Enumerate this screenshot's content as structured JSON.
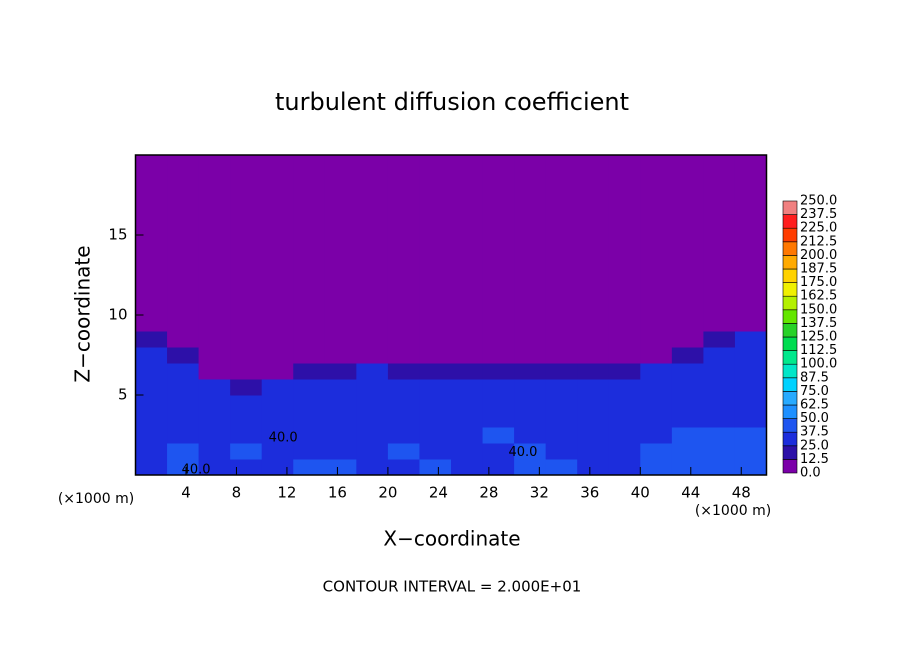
{
  "chart_data": {
    "type": "contour",
    "title": "turbulent diffusion coefficient",
    "xlabel": "X−coordinate",
    "ylabel": "Z−coordinate",
    "xunit": "(×1000 m)",
    "yunit": "(×1000 m)",
    "footer": "CONTOUR INTERVAL = 2.000E+01",
    "xlim": [
      0,
      50
    ],
    "ylim": [
      0,
      20
    ],
    "xticks": [
      4,
      8,
      12,
      16,
      20,
      24,
      28,
      32,
      36,
      40,
      44,
      48
    ],
    "yticks": [
      5,
      10,
      15
    ],
    "levels": [
      {
        "value": 0,
        "label": "0.0"
      },
      {
        "value": 12.5,
        "label": "12.5"
      },
      {
        "value": 25,
        "label": "25.0"
      },
      {
        "value": 37.5,
        "label": "37.5"
      },
      {
        "value": 50,
        "label": "50.0"
      },
      {
        "value": 62.5,
        "label": "62.5"
      },
      {
        "value": 75,
        "label": "75.0"
      },
      {
        "value": 87.5,
        "label": "87.5"
      },
      {
        "value": 100,
        "label": "100.0"
      },
      {
        "value": 112.5,
        "label": "112.5"
      },
      {
        "value": 125,
        "label": "125.0"
      },
      {
        "value": 137.5,
        "label": "137.5"
      },
      {
        "value": 150,
        "label": "150.0"
      },
      {
        "value": 162.5,
        "label": "162.5"
      },
      {
        "value": 175,
        "label": "175.0"
      },
      {
        "value": 187.5,
        "label": "187.5"
      },
      {
        "value": 200,
        "label": "200.0"
      },
      {
        "value": 212.5,
        "label": "212.5"
      },
      {
        "value": 225,
        "label": "225.0"
      },
      {
        "value": 237.5,
        "label": "237.5"
      },
      {
        "value": 250,
        "label": "250.0"
      }
    ],
    "colors": [
      "#7b00a8",
      "#2d10a8",
      "#1c2ddc",
      "#1e55f0",
      "#1e90ff",
      "#28aaff",
      "#00d2ff",
      "#00e6c8",
      "#00e88c",
      "#00dc50",
      "#28d228",
      "#64e600",
      "#b4f000",
      "#f0f000",
      "#ffd200",
      "#ffaa00",
      "#ff7800",
      "#ff3c00",
      "#ff1e1e",
      "#f08080"
    ],
    "field": {
      "x_edges": [
        0,
        2.5,
        5,
        7.5,
        10,
        12.5,
        15,
        17.5,
        20,
        22.5,
        25,
        27.5,
        30,
        32.5,
        35,
        37.5,
        40,
        42.5,
        45,
        47.5,
        50
      ],
      "z_edges": [
        0,
        1,
        2,
        3,
        4,
        5,
        6,
        7,
        8,
        9,
        10,
        20
      ],
      "values": [
        [
          37,
          40,
          35,
          30,
          35,
          40,
          38,
          32,
          35,
          40,
          36,
          33,
          38,
          42,
          35,
          30,
          38,
          45,
          40,
          42
        ],
        [
          35,
          38,
          30,
          40,
          36,
          32,
          30,
          35,
          38,
          34,
          30,
          36,
          40,
          35,
          32,
          35,
          40,
          42,
          45,
          40
        ],
        [
          32,
          35,
          28,
          30,
          34,
          30,
          36,
          33,
          30,
          28,
          35,
          38,
          32,
          30,
          34,
          32,
          30,
          38,
          40,
          38
        ],
        [
          30,
          32,
          35,
          30,
          28,
          30,
          32,
          35,
          33,
          30,
          32,
          34,
          36,
          30,
          32,
          35,
          34,
          36,
          35,
          36
        ],
        [
          30,
          28,
          30,
          32,
          30,
          33,
          35,
          32,
          36,
          34,
          30,
          32,
          35,
          33,
          30,
          36,
          32,
          34,
          33,
          35
        ],
        [
          28,
          30,
          25,
          20,
          28,
          32,
          30,
          34,
          30,
          32,
          28,
          30,
          32,
          30,
          30,
          32,
          30,
          32,
          30,
          33
        ],
        [
          28,
          25,
          10,
          2,
          8,
          15,
          20,
          25,
          22,
          20,
          18,
          24,
          20,
          22,
          20,
          15,
          28,
          30,
          28,
          30
        ],
        [
          25,
          18,
          2,
          0,
          0,
          0,
          3,
          8,
          5,
          4,
          2,
          3,
          4,
          2,
          0,
          0,
          5,
          20,
          25,
          28
        ],
        [
          22,
          8,
          0,
          0,
          0,
          0,
          0,
          0,
          0,
          0,
          0,
          0,
          0,
          0,
          0,
          0,
          0,
          3,
          18,
          25
        ],
        [
          12,
          2,
          0,
          0,
          0,
          0,
          0,
          0,
          0,
          0,
          0,
          0,
          0,
          0,
          0,
          0,
          0,
          0,
          5,
          8
        ],
        [
          0,
          0,
          0,
          0,
          0,
          0,
          0,
          0,
          0,
          0,
          0,
          0,
          0,
          0,
          0,
          0,
          0,
          0,
          0,
          0
        ]
      ]
    },
    "contour_labels": [
      {
        "text": "40.0",
        "x": 11.7,
        "z": 2.3
      },
      {
        "text": "40.0",
        "x": 4.8,
        "z": 0.3
      },
      {
        "text": "40.0",
        "x": 30.7,
        "z": 1.4
      }
    ]
  }
}
